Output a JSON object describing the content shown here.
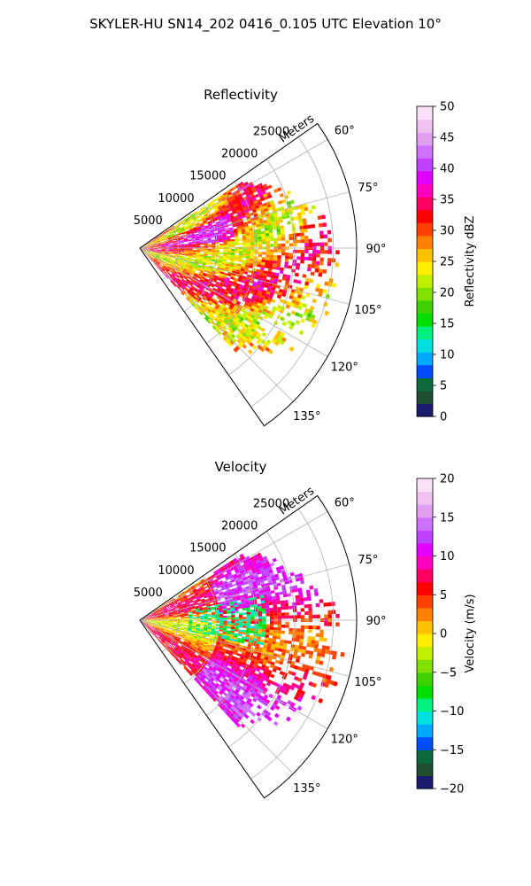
{
  "figure_title": "SKYLER-HU  SN14_202  0416_0.105 UTC Elevation 10°",
  "chart_data": [
    {
      "type": "heatmap",
      "title": "Reflectivity",
      "radial_label": "Meters",
      "theta_range_deg": [
        55,
        145
      ],
      "r_max_m": 28000,
      "radial_ticks": [
        5000,
        10000,
        15000,
        20000,
        25000
      ],
      "radial_tick_labels": [
        "5000",
        "10000",
        "15000",
        "20000",
        "25000"
      ],
      "theta_ticks": [
        60,
        75,
        90,
        105,
        120,
        135
      ],
      "theta_tick_labels": [
        "60°",
        "75°",
        "90°",
        "105°",
        "120°",
        "135°"
      ],
      "grid": true,
      "colorbar": {
        "label": "Reflectivity dBZ",
        "range": [
          0,
          50
        ],
        "ticks": [
          0,
          5,
          10,
          15,
          20,
          25,
          30,
          35,
          40,
          45,
          50
        ],
        "tick_labels": [
          "0",
          "5",
          "10",
          "15",
          "20",
          "25",
          "30",
          "35",
          "40",
          "45",
          "50"
        ],
        "colors": [
          "#1b1b6e",
          "#1f4f2f",
          "#0d6b3a",
          "#004cff",
          "#00aaff",
          "#00e0e0",
          "#00f080",
          "#00e000",
          "#40d000",
          "#80e000",
          "#c0f000",
          "#ffee00",
          "#ffc000",
          "#ff8000",
          "#ff4000",
          "#ff0000",
          "#ff0060",
          "#ff00c0",
          "#e000ff",
          "#c040ff",
          "#d070ff",
          "#e0a0f0",
          "#f0c0f0",
          "#fae0fa"
        ]
      }
    },
    {
      "type": "heatmap",
      "title": "Velocity",
      "radial_label": "Meters",
      "theta_range_deg": [
        55,
        145
      ],
      "r_max_m": 28000,
      "radial_ticks": [
        5000,
        10000,
        15000,
        20000,
        25000
      ],
      "radial_tick_labels": [
        "5000",
        "10000",
        "15000",
        "20000",
        "25000"
      ],
      "theta_ticks": [
        60,
        75,
        90,
        105,
        120,
        135
      ],
      "theta_tick_labels": [
        "60°",
        "75°",
        "90°",
        "105°",
        "120°",
        "135°"
      ],
      "grid": true,
      "colorbar": {
        "label": "Velocity (m/s)",
        "range": [
          -20,
          20
        ],
        "ticks": [
          -20,
          -15,
          -10,
          -5,
          0,
          5,
          10,
          15,
          20
        ],
        "tick_labels": [
          "−20",
          "−15",
          "−10",
          "−5",
          "0",
          "5",
          "10",
          "15",
          "20"
        ],
        "colors": [
          "#1b1b6e",
          "#1f4f2f",
          "#0d6b3a",
          "#004cff",
          "#00aaff",
          "#00e0e0",
          "#00f080",
          "#00e000",
          "#40d000",
          "#80e000",
          "#c0f000",
          "#ffee00",
          "#ffc000",
          "#ff8000",
          "#ff4000",
          "#ff0000",
          "#ff0060",
          "#ff00c0",
          "#e000ff",
          "#c040ff",
          "#d070ff",
          "#e0a0f0",
          "#f0c0f0",
          "#fae0fa"
        ]
      }
    }
  ]
}
